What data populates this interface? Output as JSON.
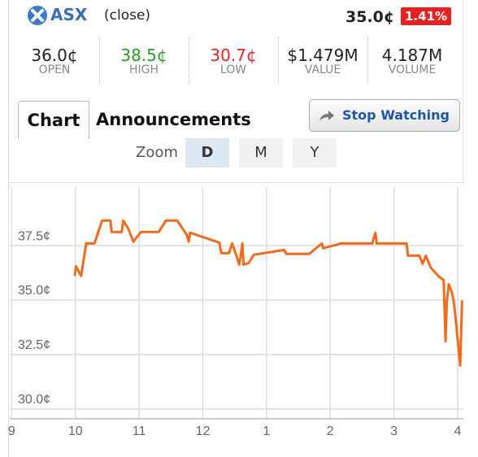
{
  "header": {
    "exchange": "ASX",
    "status": "(close)",
    "price": "35.0¢",
    "change": "1.41%"
  },
  "stats": [
    {
      "value": "36.0¢",
      "label": "OPEN",
      "color": "#222222"
    },
    {
      "value": "38.5¢",
      "label": "HIGH",
      "color": "#2a9a2a"
    },
    {
      "value": "30.7¢",
      "label": "LOW",
      "color": "#e02424"
    },
    {
      "value": "$1.479M",
      "label": "VALUE",
      "color": "#222222"
    },
    {
      "value": "4.187M",
      "label": "VOLUME",
      "color": "#222222"
    }
  ],
  "tabs": [
    "Chart",
    "Announcements"
  ],
  "button": "Stop Watching",
  "zoom": {
    "label": "Zoom",
    "options": [
      "D",
      "M",
      "Y"
    ]
  },
  "chart_data": {
    "type": "line",
    "x": [
      9.99,
      10.01,
      10.09,
      10.17,
      10.3,
      10.42,
      10.55,
      10.57,
      10.73,
      10.75,
      10.83,
      10.91,
      11.03,
      11.31,
      11.42,
      11.6,
      11.75,
      11.78,
      11.8,
      12.26,
      12.29,
      12.41,
      12.46,
      12.54,
      12.57,
      12.59,
      12.62,
      12.64,
      12.72,
      12.8,
      13.28,
      13.31,
      13.67,
      13.87,
      13.89,
      14.17,
      14.66,
      14.71,
      14.73,
      15.2,
      15.22,
      15.4,
      15.45,
      15.5,
      15.58,
      15.71,
      15.78,
      15.81,
      15.83,
      15.86,
      15.91,
      15.94,
      15.96,
      16.04,
      16.07
    ],
    "series": [
      {
        "color": "#f26b1d",
        "values": [
          36.11,
          36.55,
          36.11,
          37.6,
          37.6,
          38.65,
          38.65,
          38.13,
          38.13,
          38.65,
          38.28,
          37.68,
          38.13,
          38.13,
          38.65,
          38.65,
          37.98,
          37.68,
          38.09,
          37.64,
          37.15,
          37.15,
          37.6,
          36.93,
          36.63,
          36.93,
          37.6,
          36.63,
          36.7,
          37.08,
          37.3,
          37.12,
          37.12,
          37.6,
          37.38,
          37.6,
          37.6,
          38.09,
          37.6,
          37.6,
          37.04,
          37.04,
          36.67,
          37.04,
          36.48,
          36.07,
          35.92,
          33.11,
          34.91,
          35.73,
          35.36,
          34.91,
          34.42,
          31.99,
          34.98
        ]
      }
    ],
    "xlim": [
      8.97,
      16.09
    ],
    "ylim": [
      29.55,
      40.19
    ],
    "xticks": [
      9,
      10,
      11,
      12,
      {
        "value": 13,
        "label": "1"
      },
      {
        "value": 14,
        "label": "2"
      },
      {
        "value": 15,
        "label": "3"
      },
      {
        "value": 16,
        "label": "4"
      }
    ],
    "yticks": [
      {
        "value": 30,
        "label": "30.0¢"
      },
      {
        "value": 32.5,
        "label": "32.5¢"
      },
      {
        "value": 35,
        "label": "35.0¢"
      },
      {
        "value": 37.5,
        "label": "37.5¢"
      }
    ],
    "grid": true
  }
}
